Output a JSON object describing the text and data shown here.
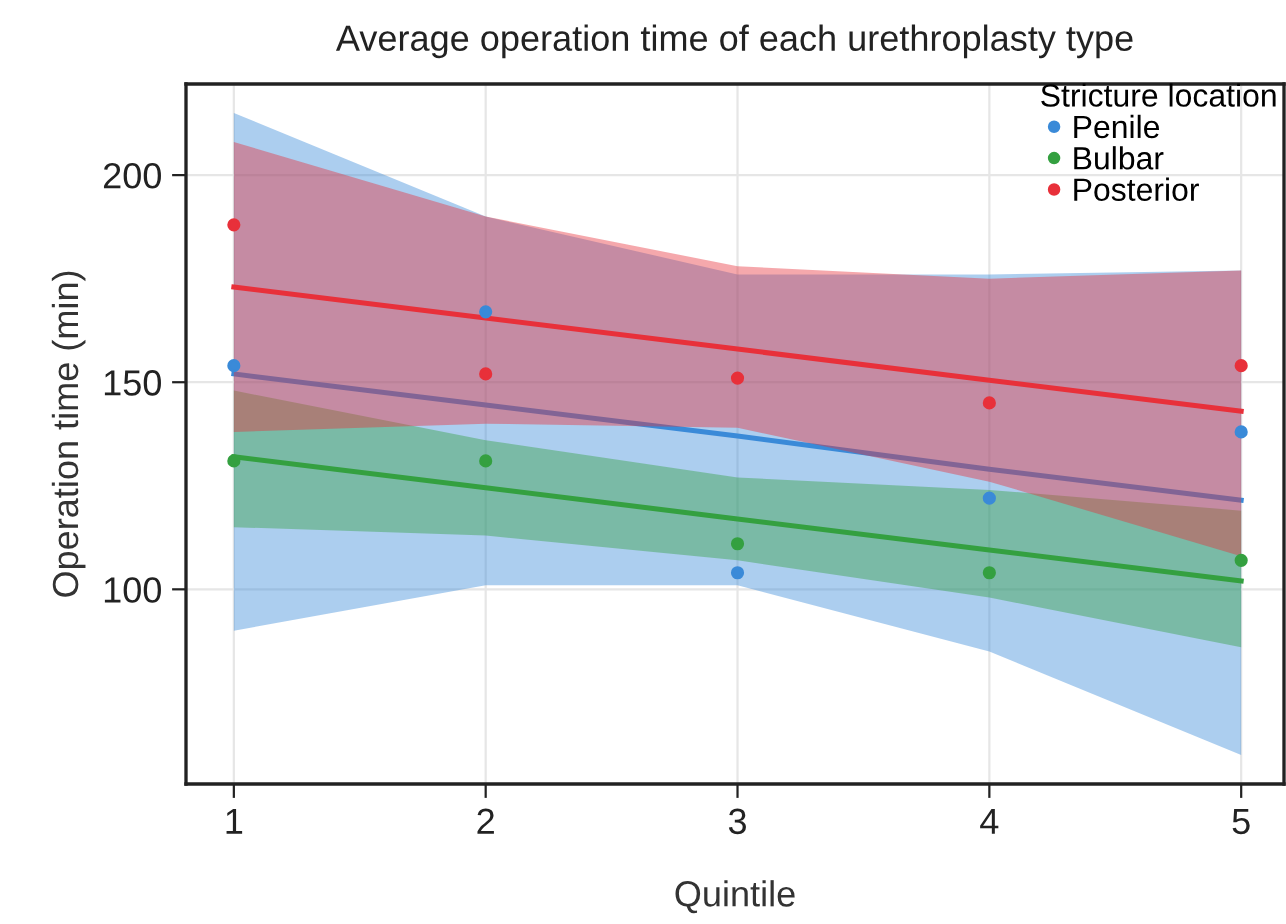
{
  "chart_data": {
    "type": "scatter",
    "title": "Average operation time of each urethroplasty type",
    "xlabel": "Quintile",
    "ylabel": "Operation time (min)",
    "legend_title": "Stricture location",
    "legend": "top right",
    "grid": true,
    "xlim": [
      0.81,
      5.17
    ],
    "xticks": [
      1,
      2,
      3,
      4,
      5
    ],
    "ylim": [
      53,
      222
    ],
    "yticks": [
      100,
      150,
      200
    ],
    "series": [
      {
        "name": "Penile",
        "color": "#3a8ad8",
        "marker": "circle",
        "x": [
          1,
          2,
          3,
          4,
          5
        ],
        "values": [
          154,
          167,
          104,
          122,
          138
        ]
      },
      {
        "name": "Bulbar",
        "color": "#34a040",
        "marker": "circle",
        "x": [
          1,
          2,
          3,
          4,
          5
        ],
        "values": [
          131,
          131,
          111,
          104,
          107
        ]
      },
      {
        "name": "Posterior",
        "color": "#e8303a",
        "marker": "circle",
        "x": [
          1,
          2,
          3,
          4,
          5
        ],
        "values": [
          188,
          152,
          151,
          145,
          154
        ]
      },
      {
        "type": "line",
        "color": "#3a8ad8",
        "x": [
          1,
          2,
          3,
          4,
          5
        ],
        "values": [
          152,
          144.5,
          137,
          129,
          121.5
        ],
        "lower": [
          90,
          101,
          101,
          85,
          60
        ],
        "upper": [
          215,
          190,
          176,
          176,
          177
        ]
      },
      {
        "type": "line",
        "color": "#34a040",
        "x": [
          1,
          2,
          3,
          4,
          5
        ],
        "values": [
          132,
          124.5,
          117,
          109.5,
          102
        ],
        "lower": [
          115,
          113,
          107,
          98,
          86
        ],
        "upper": [
          148,
          136,
          127,
          124,
          119
        ]
      },
      {
        "type": "line",
        "color": "#e8303a",
        "x": [
          1,
          2,
          3,
          4,
          5
        ],
        "values": [
          173,
          165.5,
          158,
          150.5,
          143
        ],
        "lower": [
          138,
          140,
          139,
          126,
          108
        ],
        "upper": [
          208,
          190,
          178,
          175,
          177
        ]
      }
    ]
  }
}
